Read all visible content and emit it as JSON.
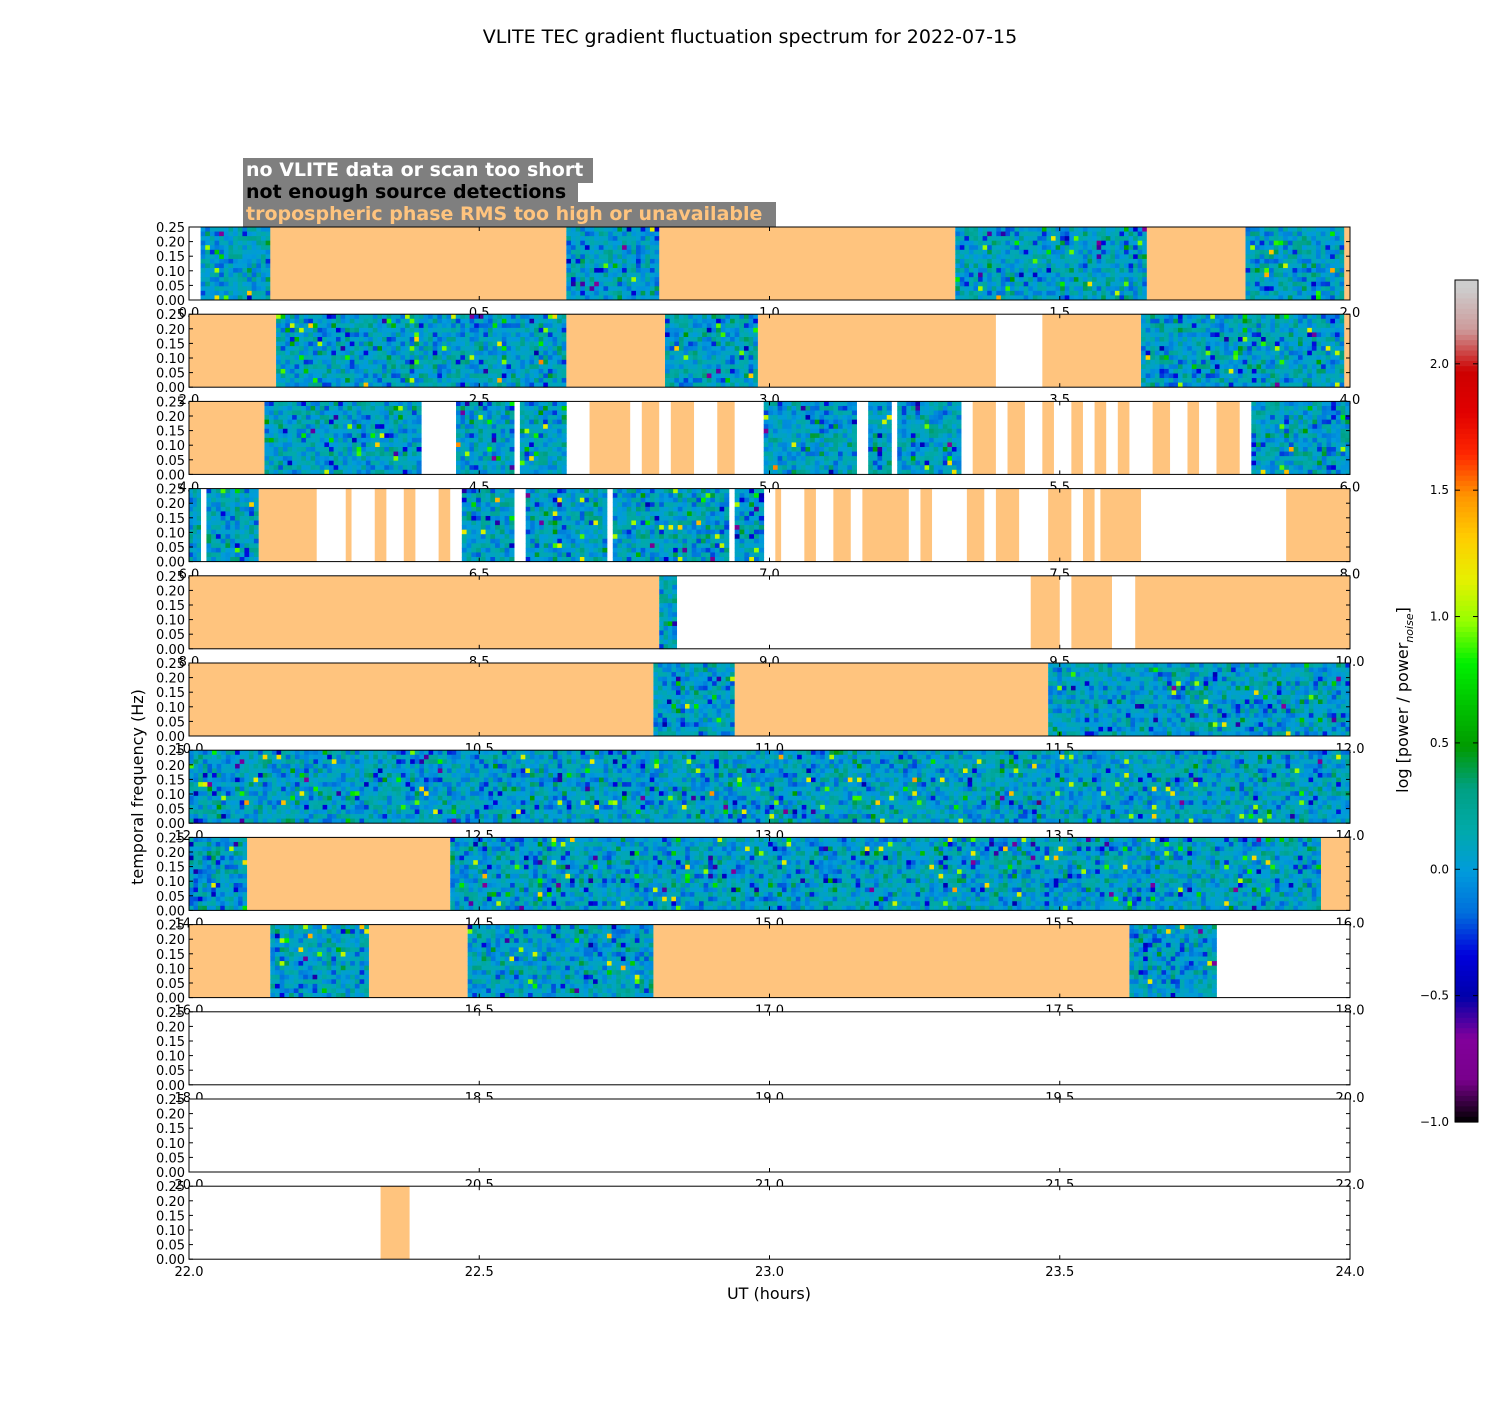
{
  "chart_data": {
    "type": "heatmap",
    "title": "VLITE TEC gradient fluctuation spectrum for 2022-07-15",
    "xlabel": "UT (hours)",
    "ylabel": "temporal frequency (Hz)",
    "ylim": [
      0,
      0.25
    ],
    "y_ticks": [
      "0.00",
      "0.05",
      "0.10",
      "0.15",
      "0.20",
      "0.25"
    ],
    "legend": [
      {
        "label": "no VLITE data or scan too short",
        "text_color": "#ffffff"
      },
      {
        "label": "not enough source detections",
        "text_color": "#000000"
      },
      {
        "label": "tropospheric phase RMS too high or unavailable",
        "text_color": "#ffc47e"
      }
    ],
    "legend_box_color": "#7f7f7f",
    "flag_color": "#ffc47e",
    "colorbar": {
      "label": "log [power / power",
      "label_subscript": "noise",
      "label_suffix": "]",
      "range": [
        -1.0,
        2.3
      ],
      "ticks": [
        -1.0,
        -0.5,
        0.0,
        0.5,
        1.0,
        1.5,
        2.0
      ],
      "tick_labels": [
        "−1.0",
        "−0.5",
        "0.0",
        "0.5",
        "1.0",
        "1.5",
        "2.0"
      ],
      "colormap": "nipy_spectral"
    },
    "panels": [
      {
        "x_range": [
          0,
          2
        ],
        "x_ticks": [
          "0.0",
          "0.5",
          "1.0",
          "1.5",
          "2.0"
        ],
        "segments": [
          {
            "kind": "blank",
            "start": 0.0,
            "end": 0.02
          },
          {
            "kind": "data",
            "start": 0.02,
            "end": 0.14
          },
          {
            "kind": "flag",
            "start": 0.14,
            "end": 0.65
          },
          {
            "kind": "data",
            "start": 0.65,
            "end": 0.81
          },
          {
            "kind": "flag",
            "start": 0.81,
            "end": 1.32
          },
          {
            "kind": "data",
            "start": 1.32,
            "end": 1.65
          },
          {
            "kind": "flag",
            "start": 1.65,
            "end": 1.82
          },
          {
            "kind": "data",
            "start": 1.82,
            "end": 1.99
          },
          {
            "kind": "flag",
            "start": 1.99,
            "end": 2.0
          }
        ]
      },
      {
        "x_range": [
          2,
          4
        ],
        "x_ticks": [
          "2.0",
          "2.5",
          "3.0",
          "3.5",
          "4.0"
        ],
        "segments": [
          {
            "kind": "flag",
            "start": 2.0,
            "end": 2.15
          },
          {
            "kind": "data",
            "start": 2.15,
            "end": 2.65
          },
          {
            "kind": "flag",
            "start": 2.65,
            "end": 2.82
          },
          {
            "kind": "data",
            "start": 2.82,
            "end": 2.98
          },
          {
            "kind": "flag",
            "start": 2.98,
            "end": 3.39
          },
          {
            "kind": "blank",
            "start": 3.39,
            "end": 3.47
          },
          {
            "kind": "flag",
            "start": 3.47,
            "end": 3.64
          },
          {
            "kind": "data",
            "start": 3.64,
            "end": 3.99
          },
          {
            "kind": "flag",
            "start": 3.99,
            "end": 4.0
          }
        ]
      },
      {
        "x_range": [
          4,
          6
        ],
        "x_ticks": [
          "4.0",
          "4.5",
          "5.0",
          "5.5",
          "6.0"
        ],
        "segments": [
          {
            "kind": "flag",
            "start": 4.0,
            "end": 4.13
          },
          {
            "kind": "data",
            "start": 4.13,
            "end": 4.4
          },
          {
            "kind": "blank",
            "start": 4.4,
            "end": 4.46
          },
          {
            "kind": "data",
            "start": 4.46,
            "end": 4.56
          },
          {
            "kind": "blank",
            "start": 4.56,
            "end": 4.57
          },
          {
            "kind": "data",
            "start": 4.57,
            "end": 4.65
          },
          {
            "kind": "blank",
            "start": 4.65,
            "end": 4.69
          },
          {
            "kind": "flag",
            "start": 4.69,
            "end": 4.76
          },
          {
            "kind": "blank",
            "start": 4.76,
            "end": 4.78
          },
          {
            "kind": "flag",
            "start": 4.78,
            "end": 4.81
          },
          {
            "kind": "blank",
            "start": 4.81,
            "end": 4.83
          },
          {
            "kind": "flag",
            "start": 4.83,
            "end": 4.87
          },
          {
            "kind": "blank",
            "start": 4.87,
            "end": 4.91
          },
          {
            "kind": "flag",
            "start": 4.91,
            "end": 4.94
          },
          {
            "kind": "blank",
            "start": 4.94,
            "end": 4.99
          },
          {
            "kind": "data",
            "start": 4.99,
            "end": 5.15
          },
          {
            "kind": "blank",
            "start": 5.15,
            "end": 5.17
          },
          {
            "kind": "data",
            "start": 5.17,
            "end": 5.21
          },
          {
            "kind": "blank",
            "start": 5.21,
            "end": 5.22
          },
          {
            "kind": "data",
            "start": 5.22,
            "end": 5.33
          },
          {
            "kind": "blank",
            "start": 5.33,
            "end": 5.35
          },
          {
            "kind": "flag",
            "start": 5.35,
            "end": 5.39
          },
          {
            "kind": "blank",
            "start": 5.39,
            "end": 5.41
          },
          {
            "kind": "flag",
            "start": 5.41,
            "end": 5.44
          },
          {
            "kind": "blank",
            "start": 5.44,
            "end": 5.47
          },
          {
            "kind": "flag",
            "start": 5.47,
            "end": 5.49
          },
          {
            "kind": "blank",
            "start": 5.49,
            "end": 5.52
          },
          {
            "kind": "flag",
            "start": 5.52,
            "end": 5.54
          },
          {
            "kind": "blank",
            "start": 5.54,
            "end": 5.56
          },
          {
            "kind": "flag",
            "start": 5.56,
            "end": 5.58
          },
          {
            "kind": "blank",
            "start": 5.58,
            "end": 5.6
          },
          {
            "kind": "flag",
            "start": 5.6,
            "end": 5.62
          },
          {
            "kind": "blank",
            "start": 5.62,
            "end": 5.66
          },
          {
            "kind": "flag",
            "start": 5.66,
            "end": 5.69
          },
          {
            "kind": "blank",
            "start": 5.69,
            "end": 5.72
          },
          {
            "kind": "flag",
            "start": 5.72,
            "end": 5.74
          },
          {
            "kind": "blank",
            "start": 5.74,
            "end": 5.77
          },
          {
            "kind": "flag",
            "start": 5.77,
            "end": 5.81
          },
          {
            "kind": "blank",
            "start": 5.81,
            "end": 5.83
          },
          {
            "kind": "data",
            "start": 5.83,
            "end": 6.0
          }
        ]
      },
      {
        "x_range": [
          6,
          8
        ],
        "x_ticks": [
          "6.0",
          "6.5",
          "7.0",
          "7.5",
          "8.0"
        ],
        "segments": [
          {
            "kind": "data",
            "start": 6.0,
            "end": 6.02
          },
          {
            "kind": "blank",
            "start": 6.02,
            "end": 6.03
          },
          {
            "kind": "data",
            "start": 6.03,
            "end": 6.12
          },
          {
            "kind": "flag",
            "start": 6.12,
            "end": 6.22
          },
          {
            "kind": "blank",
            "start": 6.22,
            "end": 6.27
          },
          {
            "kind": "flag",
            "start": 6.27,
            "end": 6.28
          },
          {
            "kind": "blank",
            "start": 6.28,
            "end": 6.32
          },
          {
            "kind": "flag",
            "start": 6.32,
            "end": 6.34
          },
          {
            "kind": "blank",
            "start": 6.34,
            "end": 6.37
          },
          {
            "kind": "flag",
            "start": 6.37,
            "end": 6.39
          },
          {
            "kind": "blank",
            "start": 6.39,
            "end": 6.43
          },
          {
            "kind": "flag",
            "start": 6.43,
            "end": 6.45
          },
          {
            "kind": "blank",
            "start": 6.45,
            "end": 6.47
          },
          {
            "kind": "data",
            "start": 6.47,
            "end": 6.56
          },
          {
            "kind": "blank",
            "start": 6.56,
            "end": 6.58
          },
          {
            "kind": "data",
            "start": 6.58,
            "end": 6.72
          },
          {
            "kind": "blank",
            "start": 6.72,
            "end": 6.73
          },
          {
            "kind": "data",
            "start": 6.73,
            "end": 6.93
          },
          {
            "kind": "blank",
            "start": 6.93,
            "end": 6.94
          },
          {
            "kind": "data",
            "start": 6.94,
            "end": 6.99
          },
          {
            "kind": "blank",
            "start": 6.99,
            "end": 7.01
          },
          {
            "kind": "flag",
            "start": 7.01,
            "end": 7.02
          },
          {
            "kind": "blank",
            "start": 7.02,
            "end": 7.06
          },
          {
            "kind": "flag",
            "start": 7.06,
            "end": 7.08
          },
          {
            "kind": "blank",
            "start": 7.08,
            "end": 7.11
          },
          {
            "kind": "flag",
            "start": 7.11,
            "end": 7.14
          },
          {
            "kind": "blank",
            "start": 7.14,
            "end": 7.16
          },
          {
            "kind": "flag",
            "start": 7.16,
            "end": 7.24
          },
          {
            "kind": "blank",
            "start": 7.24,
            "end": 7.26
          },
          {
            "kind": "flag",
            "start": 7.26,
            "end": 7.28
          },
          {
            "kind": "blank",
            "start": 7.28,
            "end": 7.34
          },
          {
            "kind": "flag",
            "start": 7.34,
            "end": 7.37
          },
          {
            "kind": "blank",
            "start": 7.37,
            "end": 7.39
          },
          {
            "kind": "flag",
            "start": 7.39,
            "end": 7.43
          },
          {
            "kind": "blank",
            "start": 7.43,
            "end": 7.48
          },
          {
            "kind": "flag",
            "start": 7.48,
            "end": 7.52
          },
          {
            "kind": "blank",
            "start": 7.52,
            "end": 7.54
          },
          {
            "kind": "flag",
            "start": 7.54,
            "end": 7.56
          },
          {
            "kind": "blank",
            "start": 7.56,
            "end": 7.57
          },
          {
            "kind": "flag",
            "start": 7.57,
            "end": 7.64
          },
          {
            "kind": "blank",
            "start": 7.64,
            "end": 7.89
          },
          {
            "kind": "flag",
            "start": 7.89,
            "end": 8.0
          }
        ]
      },
      {
        "x_range": [
          8,
          10
        ],
        "x_ticks": [
          "8.0",
          "8.5",
          "9.0",
          "9.5",
          "10.0"
        ],
        "segments": [
          {
            "kind": "flag",
            "start": 8.0,
            "end": 8.81
          },
          {
            "kind": "data",
            "start": 8.81,
            "end": 8.84
          },
          {
            "kind": "blank",
            "start": 8.84,
            "end": 9.45
          },
          {
            "kind": "flag",
            "start": 9.45,
            "end": 9.5
          },
          {
            "kind": "blank",
            "start": 9.5,
            "end": 9.52
          },
          {
            "kind": "flag",
            "start": 9.52,
            "end": 9.59
          },
          {
            "kind": "blank",
            "start": 9.59,
            "end": 9.63
          },
          {
            "kind": "flag",
            "start": 9.63,
            "end": 10.0
          }
        ]
      },
      {
        "x_range": [
          10,
          12
        ],
        "x_ticks": [
          "10.0",
          "10.5",
          "11.0",
          "11.5",
          "12.0"
        ],
        "segments": [
          {
            "kind": "flag",
            "start": 10.0,
            "end": 10.8
          },
          {
            "kind": "data",
            "start": 10.8,
            "end": 10.94
          },
          {
            "kind": "flag",
            "start": 10.94,
            "end": 11.48
          },
          {
            "kind": "data",
            "start": 11.48,
            "end": 12.0
          }
        ]
      },
      {
        "x_range": [
          12,
          14
        ],
        "x_ticks": [
          "12.0",
          "12.5",
          "13.0",
          "13.5",
          "14.0"
        ],
        "segments": [
          {
            "kind": "data",
            "start": 12.0,
            "end": 14.0
          }
        ]
      },
      {
        "x_range": [
          14,
          16
        ],
        "x_ticks": [
          "14.0",
          "14.5",
          "15.0",
          "15.5",
          "16.0"
        ],
        "segments": [
          {
            "kind": "data",
            "start": 14.0,
            "end": 14.1
          },
          {
            "kind": "flag",
            "start": 14.1,
            "end": 14.45
          },
          {
            "kind": "data",
            "start": 14.45,
            "end": 15.95
          },
          {
            "kind": "flag",
            "start": 15.95,
            "end": 16.0
          }
        ]
      },
      {
        "x_range": [
          16,
          18
        ],
        "x_ticks": [
          "16.0",
          "16.5",
          "17.0",
          "17.5",
          "18.0"
        ],
        "segments": [
          {
            "kind": "flag",
            "start": 16.0,
            "end": 16.14
          },
          {
            "kind": "data",
            "start": 16.14,
            "end": 16.31
          },
          {
            "kind": "flag",
            "start": 16.31,
            "end": 16.48
          },
          {
            "kind": "data",
            "start": 16.48,
            "end": 16.8
          },
          {
            "kind": "flag",
            "start": 16.8,
            "end": 17.62
          },
          {
            "kind": "data",
            "start": 17.62,
            "end": 17.77
          },
          {
            "kind": "blank",
            "start": 17.77,
            "end": 18.0
          }
        ]
      },
      {
        "x_range": [
          18,
          20
        ],
        "x_ticks": [
          "18.0",
          "18.5",
          "19.0",
          "19.5",
          "20.0"
        ],
        "segments": []
      },
      {
        "x_range": [
          20,
          22
        ],
        "x_ticks": [
          "20.0",
          "20.5",
          "21.0",
          "21.5",
          "22.0"
        ],
        "segments": []
      },
      {
        "x_range": [
          22,
          24
        ],
        "x_ticks": [
          "22.0",
          "22.5",
          "23.0",
          "23.5",
          "24.0"
        ],
        "segments": [
          {
            "kind": "flag",
            "start": 22.33,
            "end": 22.38
          }
        ]
      }
    ]
  }
}
